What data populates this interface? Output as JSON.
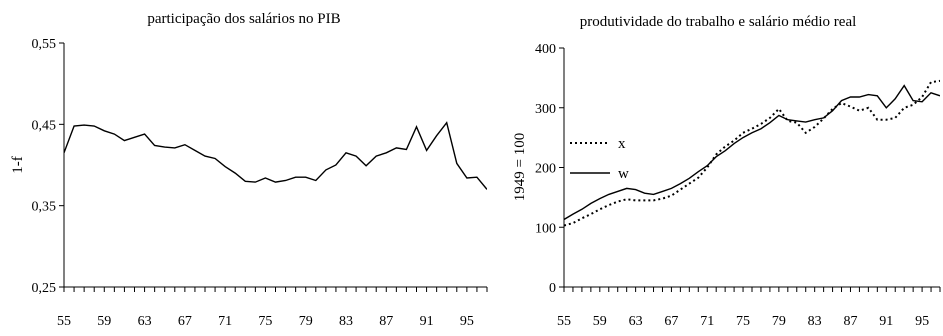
{
  "chart_data": [
    {
      "type": "line",
      "title": "participação dos salários no PIB",
      "ylabel": "1-f",
      "xlabel": "",
      "ylim": [
        0.25,
        0.55
      ],
      "xlim": [
        1955,
        1997
      ],
      "yticks": [
        "0,25",
        "0,35",
        "0,45",
        "0,55"
      ],
      "ytick_values": [
        0.25,
        0.35,
        0.45,
        0.55
      ],
      "xticks": [
        "55",
        "59",
        "63",
        "67",
        "71",
        "75",
        "79",
        "83",
        "87",
        "91",
        "95"
      ],
      "xtick_values": [
        1955,
        1959,
        1963,
        1967,
        1971,
        1975,
        1979,
        1983,
        1987,
        1991,
        1995
      ],
      "x": [
        1955,
        1956,
        1957,
        1958,
        1959,
        1960,
        1961,
        1962,
        1963,
        1964,
        1965,
        1966,
        1967,
        1968,
        1969,
        1970,
        1971,
        1972,
        1973,
        1974,
        1975,
        1976,
        1977,
        1978,
        1979,
        1980,
        1981,
        1982,
        1983,
        1984,
        1985,
        1986,
        1987,
        1988,
        1989,
        1990,
        1991,
        1992,
        1993,
        1994,
        1995,
        1996,
        1997
      ],
      "series": [
        {
          "values": [
            0.415,
            0.448,
            0.449,
            0.448,
            0.442,
            0.438,
            0.43,
            0.434,
            0.438,
            0.424,
            0.422,
            0.421,
            0.425,
            0.418,
            0.411,
            0.408,
            0.398,
            0.39,
            0.38,
            0.379,
            0.384,
            0.379,
            0.381,
            0.385,
            0.385,
            0.381,
            0.394,
            0.4,
            0.415,
            0.411,
            0.399,
            0.411,
            0.415,
            0.421,
            0.419,
            0.447,
            0.418,
            0.436,
            0.452,
            0.402,
            0.384,
            0.385,
            0.37
          ],
          "color": "#000000",
          "dash": "solid"
        }
      ],
      "grid": false
    },
    {
      "type": "line",
      "title": "produtividade do trabalho e salário médio real",
      "ylabel": "1949 = 100",
      "xlabel": "",
      "ylim": [
        0,
        400
      ],
      "xlim": [
        1955,
        1997
      ],
      "yticks": [
        "0",
        "100",
        "200",
        "300",
        "400"
      ],
      "ytick_values": [
        0,
        100,
        200,
        300,
        400
      ],
      "xticks": [
        "55",
        "59",
        "63",
        "67",
        "71",
        "75",
        "79",
        "83",
        "87",
        "91",
        "95"
      ],
      "xtick_values": [
        1955,
        1959,
        1963,
        1967,
        1971,
        1975,
        1979,
        1983,
        1987,
        1991,
        1995
      ],
      "x": [
        1955,
        1956,
        1957,
        1958,
        1959,
        1960,
        1961,
        1962,
        1963,
        1964,
        1965,
        1966,
        1967,
        1968,
        1969,
        1970,
        1971,
        1972,
        1973,
        1974,
        1975,
        1976,
        1977,
        1978,
        1979,
        1980,
        1981,
        1982,
        1983,
        1984,
        1985,
        1986,
        1987,
        1988,
        1989,
        1990,
        1991,
        1992,
        1993,
        1994,
        1995,
        1996,
        1997
      ],
      "series": [
        {
          "name": "x",
          "values": [
            103,
            107,
            115,
            122,
            130,
            137,
            143,
            147,
            145,
            145,
            145,
            148,
            153,
            163,
            173,
            183,
            200,
            222,
            235,
            245,
            258,
            265,
            273,
            283,
            298,
            278,
            275,
            258,
            268,
            282,
            298,
            308,
            302,
            295,
            300,
            280,
            280,
            283,
            300,
            305,
            318,
            343,
            345
          ],
          "color": "#000000",
          "dash": "dotted"
        },
        {
          "name": "w",
          "values": [
            113,
            122,
            130,
            140,
            148,
            155,
            160,
            165,
            163,
            157,
            155,
            160,
            165,
            173,
            182,
            193,
            203,
            218,
            228,
            240,
            250,
            258,
            265,
            275,
            287,
            280,
            278,
            276,
            280,
            283,
            295,
            312,
            318,
            318,
            322,
            320,
            300,
            315,
            337,
            312,
            310,
            325,
            320
          ],
          "color": "#000000",
          "dash": "solid"
        }
      ],
      "legend": "upper-left",
      "grid": false
    }
  ]
}
